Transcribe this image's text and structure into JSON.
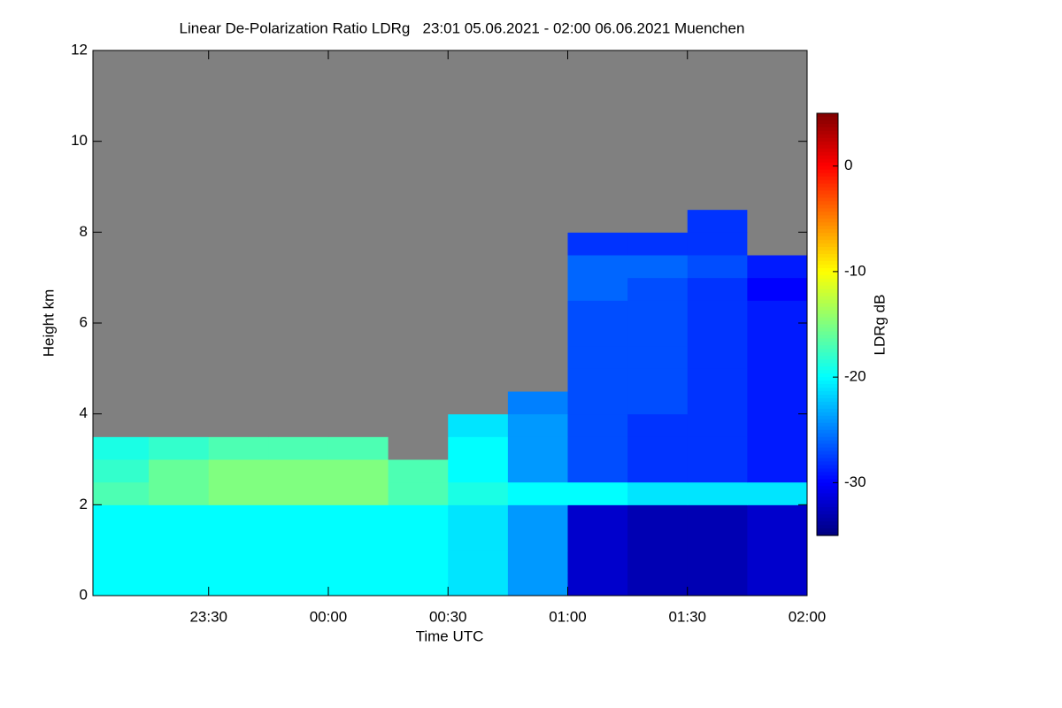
{
  "chart_data": {
    "type": "heatmap",
    "title": "Linear De-Polarization Ratio LDRg   23:01 05.06.2021 - 02:00 06.06.2021 Muenchen",
    "x_label": "Time UTC",
    "y_label": "Height km",
    "colorbar_label": "LDRg dB",
    "colormap": "jet",
    "missing_color": "#808080",
    "x": [
      23.125,
      23.375,
      23.625,
      23.875,
      24.125,
      24.375,
      24.625,
      24.875,
      25.125,
      25.375,
      25.625,
      25.875
    ],
    "y": [
      0.25,
      0.75,
      1.25,
      1.75,
      2.25,
      2.75,
      3.25,
      3.75,
      4.25,
      4.75,
      5.25,
      5.75,
      6.25,
      6.75,
      7.25,
      7.75,
      8.25,
      8.75,
      9.25,
      9.75,
      10.25,
      10.75,
      11.25,
      11.75
    ],
    "values": [
      [
        -20,
        -20,
        -20,
        -20,
        -20,
        -20,
        -21,
        -24,
        -32,
        -33,
        -33,
        -32
      ],
      [
        -20,
        -20,
        -20,
        -20,
        -20,
        -20,
        -21,
        -24,
        -32,
        -33,
        -33,
        -32
      ],
      [
        -20,
        -20,
        -20,
        -20,
        -20,
        -20,
        -21,
        -24,
        -32,
        -33,
        -33,
        -32
      ],
      [
        -20,
        -20,
        -20,
        -20,
        -20,
        -20,
        -21,
        -24,
        -32,
        -33,
        -33,
        -32
      ],
      [
        -17,
        -16,
        -15,
        -15,
        -15,
        -17,
        -19,
        -20,
        -20,
        -21,
        -21,
        -21
      ],
      [
        -18,
        -16,
        -15,
        -15,
        -15,
        -17,
        -20,
        -24,
        -27,
        -28,
        -28,
        -29
      ],
      [
        -19,
        -18,
        -17,
        -17,
        -17,
        null,
        -20,
        -24,
        -27,
        -28,
        -28,
        -29
      ],
      [
        null,
        null,
        null,
        null,
        null,
        null,
        -21,
        -24,
        -27,
        -28,
        -28,
        -29
      ],
      [
        null,
        null,
        null,
        null,
        null,
        null,
        null,
        -25,
        -27,
        -27,
        -28,
        -29
      ],
      [
        null,
        null,
        null,
        null,
        null,
        null,
        null,
        null,
        -27,
        -27,
        -28,
        -29
      ],
      [
        null,
        null,
        null,
        null,
        null,
        null,
        null,
        null,
        -27,
        -27,
        -28,
        -29
      ],
      [
        null,
        null,
        null,
        null,
        null,
        null,
        null,
        null,
        -27,
        -27,
        -28,
        -29
      ],
      [
        null,
        null,
        null,
        null,
        null,
        null,
        null,
        null,
        -27,
        -27,
        -28,
        -29
      ],
      [
        null,
        null,
        null,
        null,
        null,
        null,
        null,
        null,
        -26,
        -27,
        -28,
        -30
      ],
      [
        null,
        null,
        null,
        null,
        null,
        null,
        null,
        null,
        -26,
        -26,
        -27,
        -29
      ],
      [
        null,
        null,
        null,
        null,
        null,
        null,
        null,
        null,
        -28,
        -28,
        -28,
        null
      ],
      [
        null,
        null,
        null,
        null,
        null,
        null,
        null,
        null,
        null,
        null,
        -28,
        null
      ],
      [
        null,
        null,
        null,
        null,
        null,
        null,
        null,
        null,
        null,
        null,
        null,
        null
      ],
      [
        null,
        null,
        null,
        null,
        null,
        null,
        null,
        null,
        null,
        null,
        null,
        null
      ],
      [
        null,
        null,
        null,
        null,
        null,
        null,
        null,
        null,
        null,
        null,
        null,
        null
      ],
      [
        null,
        null,
        null,
        null,
        null,
        null,
        null,
        null,
        null,
        null,
        null,
        null
      ],
      [
        null,
        null,
        null,
        null,
        null,
        null,
        null,
        null,
        null,
        null,
        null,
        null
      ],
      [
        null,
        null,
        null,
        null,
        null,
        null,
        null,
        null,
        null,
        null,
        null,
        null
      ],
      [
        null,
        null,
        null,
        null,
        null,
        null,
        null,
        null,
        null,
        null,
        null,
        null
      ]
    ],
    "xlim": [
      23.0167,
      26
    ],
    "xticks": [
      {
        "value": 23.5,
        "label": "23:30"
      },
      {
        "value": 24,
        "label": "00:00"
      },
      {
        "value": 24.5,
        "label": "00:30"
      },
      {
        "value": 25,
        "label": "01:00"
      },
      {
        "value": 25.5,
        "label": "01:30"
      },
      {
        "value": 26,
        "label": "02:00"
      }
    ],
    "ylim": [
      0,
      12
    ],
    "yticks": [
      0,
      2,
      4,
      6,
      8,
      10,
      12
    ],
    "zlim": [
      -35,
      5
    ],
    "zticks": [
      0,
      -10,
      -20,
      -30
    ]
  }
}
